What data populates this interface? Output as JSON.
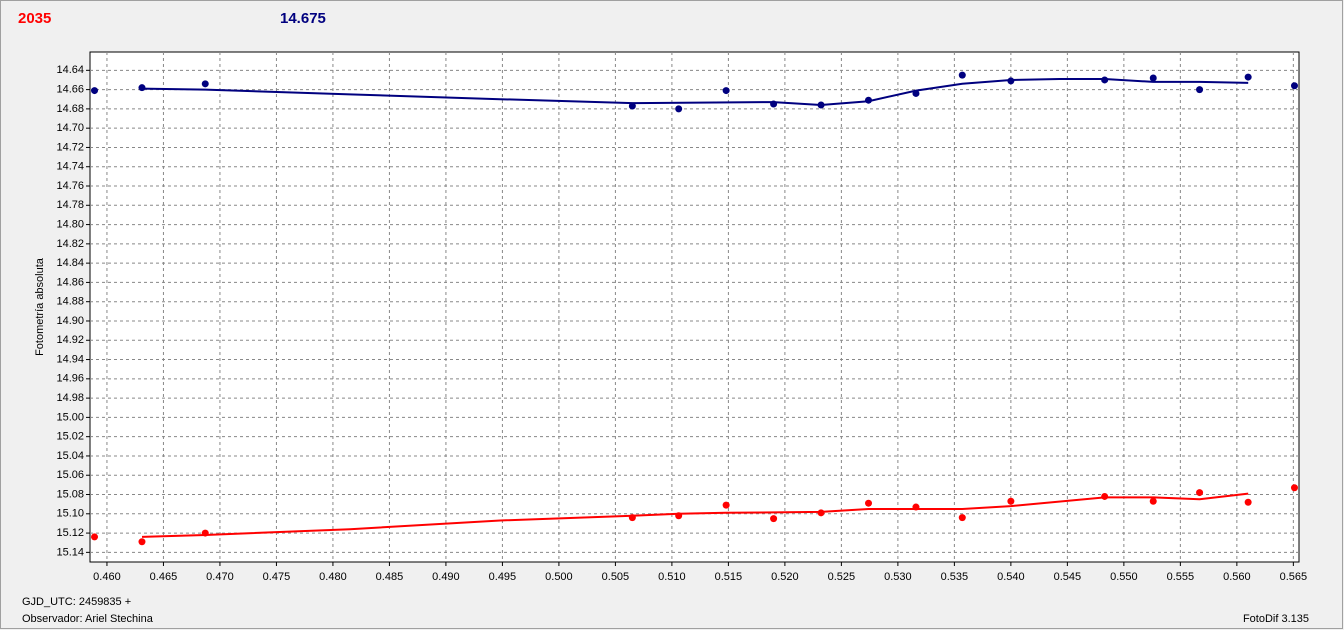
{
  "chart_data": {
    "type": "scatter",
    "header_labels": [
      {
        "text": "2035",
        "color": "#ff0000"
      },
      {
        "text": "14.675",
        "color": "#00007f"
      }
    ],
    "y_label": "Fotometría absoluta",
    "x_label": "GJD_UTC: 2459835 +",
    "observer": "Observador: Ariel Stechina",
    "software": "FotoDif 3.135",
    "grid": true,
    "y_inverted": true,
    "xlim": [
      0.4585,
      0.5655
    ],
    "ylim": [
      15.15,
      14.621
    ],
    "xticks": [
      {
        "value": 0.46,
        "label": "0.460"
      },
      0.465,
      {
        "value": 0.47,
        "label": "0.470"
      },
      0.475,
      {
        "value": 0.48,
        "label": "0.480"
      },
      0.485,
      {
        "value": 0.49,
        "label": "0.490"
      },
      0.495,
      {
        "value": 0.5,
        "label": "0.500"
      },
      0.505,
      {
        "value": 0.51,
        "label": "0.510"
      },
      0.515,
      {
        "value": 0.52,
        "label": "0.520"
      },
      0.525,
      {
        "value": 0.53,
        "label": "0.530"
      },
      0.535,
      {
        "value": 0.54,
        "label": "0.540"
      },
      0.545,
      {
        "value": 0.55,
        "label": "0.550"
      },
      0.555,
      {
        "value": 0.56,
        "label": "0.560"
      },
      0.565
    ],
    "yticks": [
      14.64,
      14.66,
      14.68,
      {
        "value": 14.7,
        "label": "14.70"
      },
      14.72,
      14.74,
      14.76,
      14.78,
      {
        "value": 14.8,
        "label": "14.80"
      },
      14.82,
      14.84,
      14.86,
      14.88,
      {
        "value": 14.9,
        "label": "14.90"
      },
      14.92,
      14.94,
      14.96,
      14.98,
      {
        "value": 15.0,
        "label": "15.00"
      },
      15.02,
      15.04,
      15.06,
      15.08,
      {
        "value": 15.1,
        "label": "15.10"
      },
      15.12,
      15.14
    ],
    "x": [
      0.4589,
      0.4631,
      0.4687,
      0.5065,
      0.5106,
      0.5148,
      0.519,
      0.5232,
      0.5274,
      0.5316,
      0.5357,
      0.54,
      0.5483,
      0.5526,
      0.5567,
      0.561,
      0.5651
    ],
    "series": [
      {
        "color": "#00007f",
        "values": [
          14.661,
          14.658,
          14.654,
          14.677,
          14.68,
          14.661,
          14.675,
          14.676,
          14.671,
          14.664,
          14.645,
          14.651,
          14.65,
          14.648,
          14.66,
          14.647,
          14.656
        ]
      },
      {
        "color": "#ff0000",
        "values": [
          15.124,
          15.129,
          15.12,
          15.104,
          15.102,
          15.091,
          15.105,
          15.099,
          15.089,
          15.093,
          15.104,
          15.087,
          15.082,
          15.087,
          15.078,
          15.088,
          15.073
        ]
      }
    ],
    "fits": [
      {
        "color": "#00007f",
        "x": [
          0.4631,
          0.4687,
          0.4815,
          0.4948,
          0.5065,
          0.519,
          0.5232,
          0.5274,
          0.5316,
          0.5357,
          0.54,
          0.5443,
          0.5483,
          0.5526,
          0.5567,
          0.561
        ],
        "values": [
          14.659,
          14.66,
          14.665,
          14.67,
          14.674,
          14.673,
          14.676,
          14.672,
          14.661,
          14.654,
          14.65,
          14.649,
          14.649,
          14.652,
          14.652,
          14.653
        ]
      },
      {
        "color": "#ff0000",
        "x": [
          0.4631,
          0.4687,
          0.4815,
          0.4948,
          0.5065,
          0.5106,
          0.5148,
          0.5232,
          0.5274,
          0.5357,
          0.54,
          0.5483,
          0.5526,
          0.5567,
          0.561
        ],
        "values": [
          15.124,
          15.122,
          15.116,
          15.107,
          15.102,
          15.1,
          15.099,
          15.098,
          15.095,
          15.095,
          15.092,
          15.083,
          15.083,
          15.085,
          15.079
        ]
      }
    ]
  }
}
